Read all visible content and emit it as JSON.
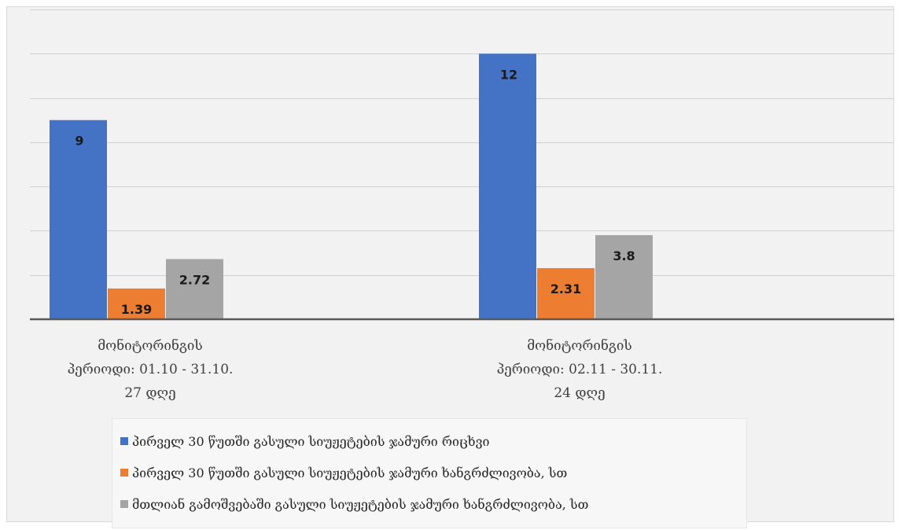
{
  "chart_data": {
    "type": "bar",
    "categories": [
      [
        "მონიტორინგის",
        "პერიოდი: 01.10 - 31.10.",
        "27 დღე"
      ],
      [
        "მონიტორინგის",
        "პერიოდი: 02.11 - 30.11.",
        "24 დღე"
      ]
    ],
    "series": [
      {
        "name": "პირველ 30 წუთში გასული სიუჟეტების ჯამური რიცხვი",
        "values": [
          9,
          12
        ],
        "color": "#4472c4"
      },
      {
        "name": "პირველ 30 წუთში გასული სიუჟეტების ჯამური ხანგრძლივობა, სთ",
        "values": [
          1.39,
          2.31
        ],
        "color": "#ed7d31"
      },
      {
        "name": "მთლიან გამოშვებაში გასული სიუჟეტების ჯამური ხანგრძლივობა, სთ",
        "values": [
          2.72,
          3.8
        ],
        "color": "#a5a5a5"
      }
    ],
    "ylim": [
      0,
      14
    ],
    "gridline_step": 2,
    "grid": true,
    "legend_position": "bottom"
  }
}
